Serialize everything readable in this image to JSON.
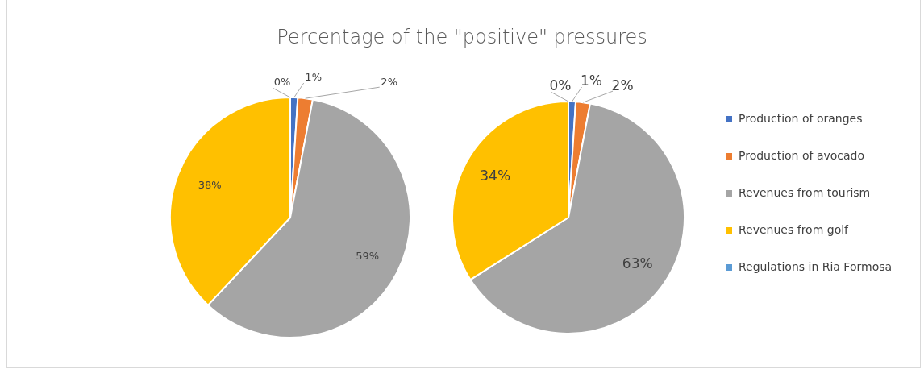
{
  "chart_data": [
    {
      "type": "pie",
      "title": "Percentage of the \"positive\" pressures",
      "categories": [
        "Production of oranges",
        "Production of avocado",
        "Revenues from tourism",
        "Revenues from golf",
        "Regulations in Ria Formosa"
      ],
      "values": [
        1,
        2,
        59,
        38,
        0
      ],
      "colors": [
        "#4472c4",
        "#ed7d31",
        "#a5a5a5",
        "#ffc000",
        "#5b9bd5"
      ],
      "value_labels": [
        "1%",
        "2%",
        "59%",
        "38%",
        "0%"
      ],
      "legend": "right"
    },
    {
      "type": "pie",
      "categories": [
        null,
        null,
        null,
        null,
        null
      ],
      "values": [
        1,
        2,
        63,
        34,
        0
      ],
      "colors": [
        "#4472c4",
        "#ed7d31",
        "#a5a5a5",
        "#ffc000",
        "#5b9bd5"
      ],
      "value_labels": [
        "1%",
        "2%",
        "63%",
        "34%",
        "0%"
      ]
    }
  ]
}
